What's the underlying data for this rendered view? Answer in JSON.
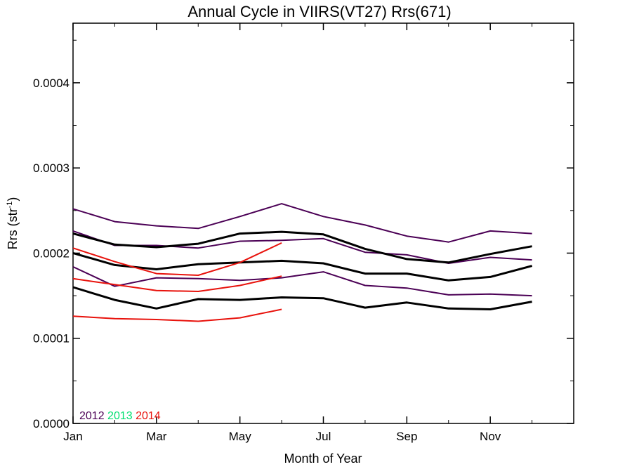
{
  "chart_data": {
    "type": "line",
    "title": "Annual Cycle in VIIRS(VT27) Rrs(671)",
    "xlabel": "Month of Year",
    "ylabel_main": "Rrs (str",
    "ylabel_sup": "-1",
    "ylabel_close": ")",
    "xlim": [
      1,
      13
    ],
    "ylim": [
      0,
      0.00047
    ],
    "x_ticks": [
      {
        "value": 1,
        "label": "Jan"
      },
      {
        "value": 3,
        "label": "Mar"
      },
      {
        "value": 5,
        "label": "May"
      },
      {
        "value": 7,
        "label": "Jul"
      },
      {
        "value": 9,
        "label": "Sep"
      },
      {
        "value": 11,
        "label": "Nov"
      }
    ],
    "y_ticks": [
      {
        "value": 0,
        "label": "0.0000"
      },
      {
        "value": 0.0001,
        "label": "0.0001"
      },
      {
        "value": 0.0002,
        "label": "0.0002"
      },
      {
        "value": 0.0003,
        "label": "0.0003"
      },
      {
        "value": 0.0004,
        "label": "0.0004"
      }
    ],
    "legend": [
      {
        "label": "2012",
        "color": "#4b0055"
      },
      {
        "label": "2013",
        "color": "#00e070"
      },
      {
        "label": "2014",
        "color": "#e8120c"
      }
    ],
    "series": [
      {
        "year": "2012",
        "role": "upper",
        "color": "#4b0055",
        "width": 2,
        "x": [
          1,
          2,
          3,
          4,
          5,
          6,
          7,
          8,
          9,
          10,
          11,
          12
        ],
        "y": [
          0.000252,
          0.000237,
          0.000232,
          0.000229,
          0.000243,
          0.000258,
          0.000243,
          0.000233,
          0.00022,
          0.000213,
          0.000226,
          0.000223
        ]
      },
      {
        "year": "2012",
        "role": "mean",
        "color": "#4b0055",
        "width": 2,
        "x": [
          1,
          2,
          3,
          4,
          5,
          6,
          7,
          8,
          9,
          10,
          11,
          12
        ],
        "y": [
          0.000226,
          0.000209,
          0.000209,
          0.000206,
          0.000214,
          0.000215,
          0.000217,
          0.000201,
          0.000198,
          0.000188,
          0.000195,
          0.000192
        ]
      },
      {
        "year": "2012",
        "role": "lower",
        "color": "#4b0055",
        "width": 2,
        "x": [
          1,
          2,
          3,
          4,
          5,
          6,
          7,
          8,
          9,
          10,
          11,
          12
        ],
        "y": [
          0.000184,
          0.000161,
          0.000171,
          0.00017,
          0.000168,
          0.000171,
          0.000178,
          0.000162,
          0.000159,
          0.000151,
          0.000152,
          0.00015
        ]
      },
      {
        "year": "climatology",
        "role": "upper",
        "color": "#000000",
        "width": 3,
        "x": [
          1,
          2,
          3,
          4,
          5,
          6,
          7,
          8,
          9,
          10,
          11,
          12
        ],
        "y": [
          0.000223,
          0.00021,
          0.000207,
          0.000211,
          0.000223,
          0.000225,
          0.000222,
          0.000205,
          0.000193,
          0.000189,
          0.000199,
          0.000208
        ]
      },
      {
        "year": "climatology",
        "role": "mean",
        "color": "#000000",
        "width": 3,
        "x": [
          1,
          2,
          3,
          4,
          5,
          6,
          7,
          8,
          9,
          10,
          11,
          12
        ],
        "y": [
          0.0002,
          0.000186,
          0.000181,
          0.000187,
          0.000189,
          0.000191,
          0.000188,
          0.000176,
          0.000176,
          0.000168,
          0.000172,
          0.000185
        ]
      },
      {
        "year": "climatology",
        "role": "lower",
        "color": "#000000",
        "width": 3,
        "x": [
          1,
          2,
          3,
          4,
          5,
          6,
          7,
          8,
          9,
          10,
          11,
          12
        ],
        "y": [
          0.00016,
          0.000145,
          0.000135,
          0.000146,
          0.000145,
          0.000148,
          0.000147,
          0.000136,
          0.000142,
          0.000135,
          0.000134,
          0.000143
        ]
      },
      {
        "year": "2014",
        "role": "upper",
        "color": "#e8120c",
        "width": 2,
        "x": [
          1,
          2,
          3,
          4,
          5,
          6
        ],
        "y": [
          0.000206,
          0.00019,
          0.000176,
          0.000174,
          0.000189,
          0.000212
        ]
      },
      {
        "year": "2014",
        "role": "mean",
        "color": "#e8120c",
        "width": 2,
        "x": [
          1,
          2,
          3,
          4,
          5,
          6
        ],
        "y": [
          0.00017,
          0.000163,
          0.000156,
          0.000155,
          0.000162,
          0.000173
        ]
      },
      {
        "year": "2014",
        "role": "lower",
        "color": "#e8120c",
        "width": 2,
        "x": [
          1,
          2,
          3,
          4,
          5,
          6
        ],
        "y": [
          0.000126,
          0.000123,
          0.000122,
          0.00012,
          0.000124,
          0.000134
        ]
      }
    ],
    "grid": false
  }
}
